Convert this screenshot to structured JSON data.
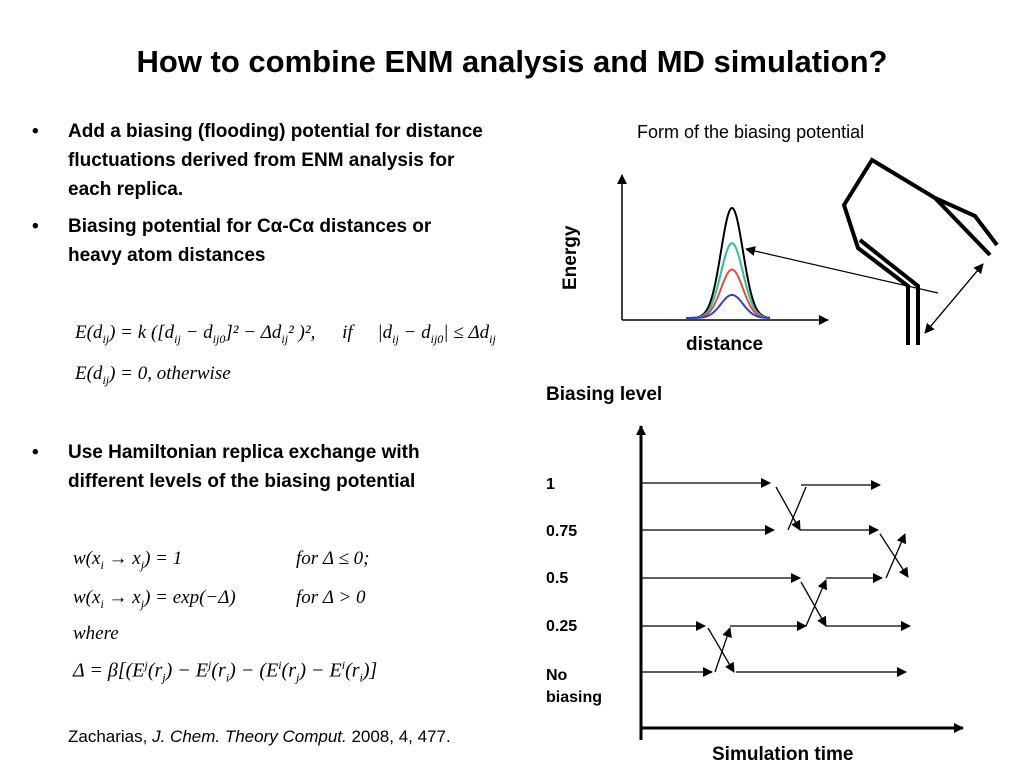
{
  "title": "How to combine ENM analysis and MD simulation?",
  "bullets": [
    {
      "symbol": "•",
      "text": "Add a biasing (flooding) potential for distance fluctuations derived from ENM analysis for each replica."
    },
    {
      "symbol": "•",
      "text": "Biasing potential for Cα-Cα distances or heavy atom distances"
    },
    {
      "symbol": "•",
      "text": "Use Hamiltonian replica exchange with different levels of the biasing potential"
    }
  ],
  "equation1": {
    "line1_lhs": "E(d",
    "line1_lhs_sub": "ij",
    "line1_mid": ") = k ([d",
    "line1_rest": "− d",
    "line1_sub0": "ij0",
    "line1_tail": "]² − Δd",
    "line1_tail2": "² )²,",
    "line1_if": "if",
    "line1_cond": "|d",
    "line1_cond2": " − d",
    "line1_cond3": "| ≤ Δd",
    "line2": "E(d",
    "line2_sub": "ij",
    "line2_rest": ") = 0, otherwise"
  },
  "equation2": {
    "line1": "w(x",
    "line1_i": "i",
    "line1_arrow": " → x",
    "line1_j": "j",
    "line1_eq": ") = 1",
    "line1_cond": "for Δ ≤ 0;",
    "line2": "w(x",
    "line2_eq": ") = exp(−Δ)",
    "line2_cond": "for Δ > 0",
    "line3": "where",
    "line4": "Δ = β[(E",
    "line4_sup_j": "j",
    "line4_a": "(r",
    "line4_b": ") − E",
    "line4_c": ") − (E",
    "line4_sup_i": "i",
    "line4_d": ")]"
  },
  "citation": {
    "author": "Zacharias, ",
    "journal": "J. Chem. Theory Comput.",
    "rest": " 2008, 4, 477."
  },
  "energy_plot": {
    "caption": "Form of the biasing potential",
    "ylabel": "Energy",
    "xlabel": "distance",
    "curve_colors": [
      "#000000",
      "#2bbf9a",
      "#e0504a",
      "#3a3fc0"
    ],
    "relative_heights": [
      1.0,
      0.68,
      0.44,
      0.21
    ]
  },
  "exchange_plot": {
    "ylabel": "Biasing level",
    "xlabel": "Simulation time",
    "levels": [
      "1",
      "0.75",
      "0.5",
      "0.25",
      "No biasing"
    ]
  }
}
